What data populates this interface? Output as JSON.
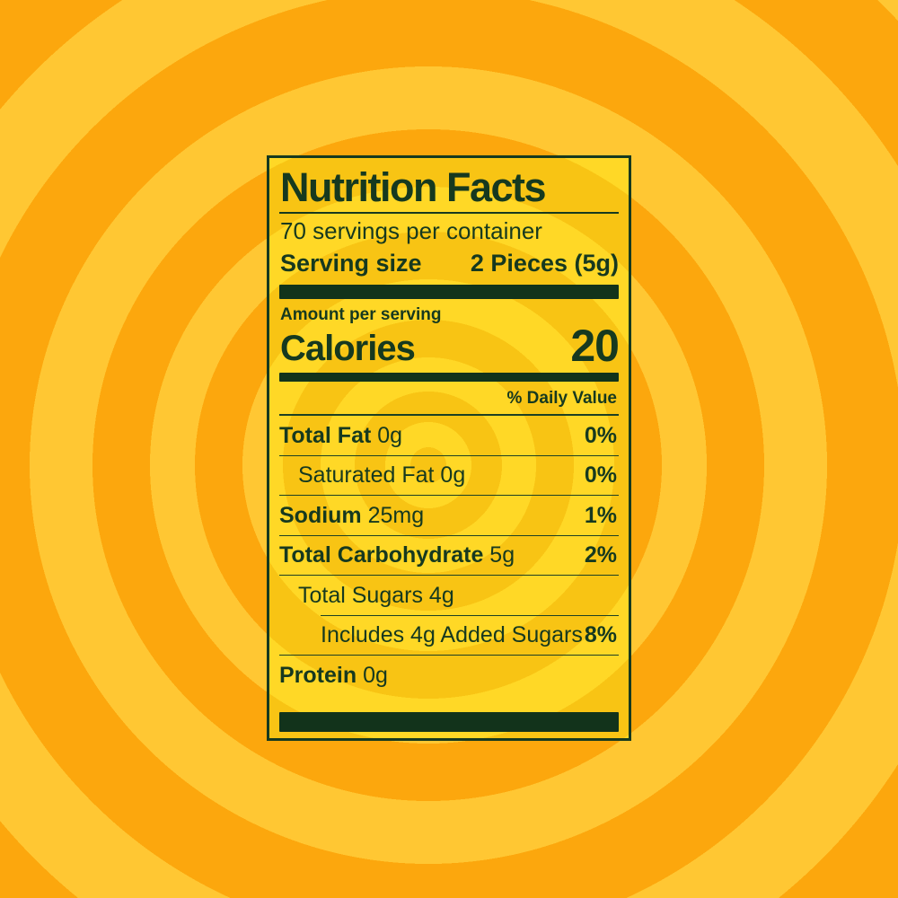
{
  "label": {
    "title": "Nutrition Facts",
    "servings_per_container": "70 servings per container",
    "serving_size_label": "Serving size",
    "serving_size_value": "2 Pieces (5g)",
    "amount_per_serving": "Amount per serving",
    "calories_label": "Calories",
    "calories_value": "20",
    "daily_value_header": "% Daily Value",
    "colors": {
      "text_green": "#16391f",
      "bar_green": "#12331b",
      "label_yellow_light": "#ffd826",
      "label_yellow_dark": "#f8c414",
      "bg_orange_light": "#ffc733",
      "bg_orange_dark": "#fca70d"
    },
    "rows": [
      {
        "name": "Total Fat",
        "amount": " 0g",
        "dv": "0%"
      },
      {
        "name": "Saturated Fat 0g",
        "amount": "",
        "dv": "0%"
      },
      {
        "name": "Sodium",
        "amount": " 25mg",
        "dv": "1%"
      },
      {
        "name": "Total Carbohydrate",
        "amount": " 5g",
        "dv": "2%"
      },
      {
        "name": "Total Sugars 4g",
        "amount": "",
        "dv": ""
      },
      {
        "name": "Includes 4g Added Sugars",
        "amount": "",
        "dv": "8%"
      },
      {
        "name": "Protein",
        "amount": " 0g",
        "dv": ""
      }
    ]
  }
}
